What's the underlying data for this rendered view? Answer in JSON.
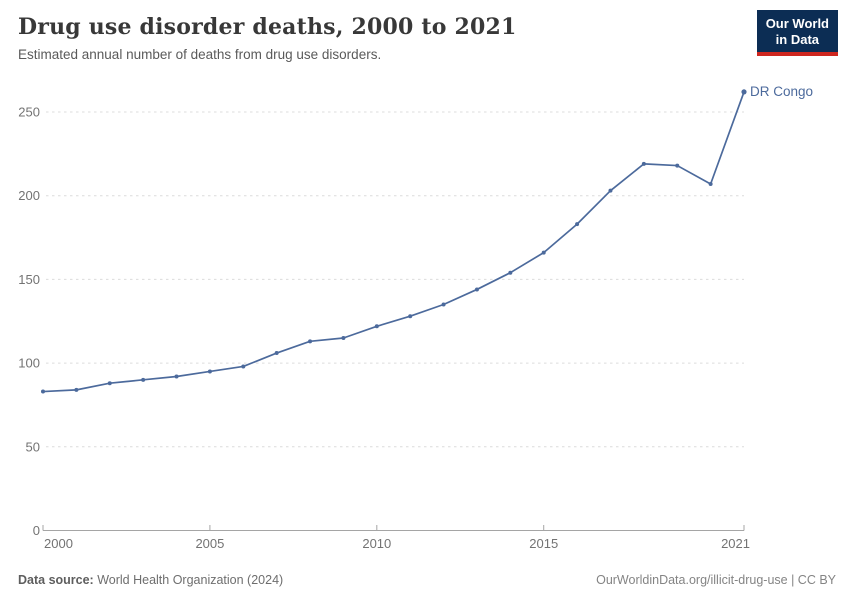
{
  "header": {
    "title": "Drug use disorder deaths, 2000 to 2021",
    "subtitle": "Estimated annual number of deaths from drug use disorders.",
    "logo": {
      "line1": "Our World",
      "line2": "in Data"
    }
  },
  "chart_data": {
    "type": "line",
    "title": "Drug use disorder deaths, 2000 to 2021",
    "subtitle": "Estimated annual number of deaths from drug use disorders.",
    "xlabel": "",
    "ylabel": "",
    "x": [
      2000,
      2001,
      2002,
      2003,
      2004,
      2005,
      2006,
      2007,
      2008,
      2009,
      2010,
      2011,
      2012,
      2013,
      2014,
      2015,
      2016,
      2017,
      2018,
      2019,
      2020,
      2021
    ],
    "series": [
      {
        "name": "DR Congo",
        "color": "#4C6A9C",
        "values": [
          83,
          84,
          88,
          90,
          92,
          95,
          98,
          106,
          113,
          115,
          122,
          128,
          135,
          144,
          154,
          166,
          183,
          203,
          219,
          218,
          207,
          262
        ]
      }
    ],
    "x_ticks": [
      2000,
      2005,
      2010,
      2015,
      2021
    ],
    "y_ticks": [
      0,
      50,
      100,
      150,
      200,
      250
    ],
    "xlim": [
      2000,
      2021
    ],
    "ylim": [
      0,
      270
    ],
    "grid": "horizontal-dashed",
    "legend": "end-of-line-label"
  },
  "footer": {
    "source_label": "Data source:",
    "source_value": " World Health Organization (2024)",
    "credit": "OurWorldinData.org/illicit-drug-use | CC BY"
  },
  "theme": {
    "accent": "#4C6A9C",
    "logo_navy": "#0C2D54",
    "logo_red": "#CE261F",
    "grid_color": "#dcdcdc",
    "axis_color": "#a5a5a5",
    "tick_label_color": "#737373"
  }
}
